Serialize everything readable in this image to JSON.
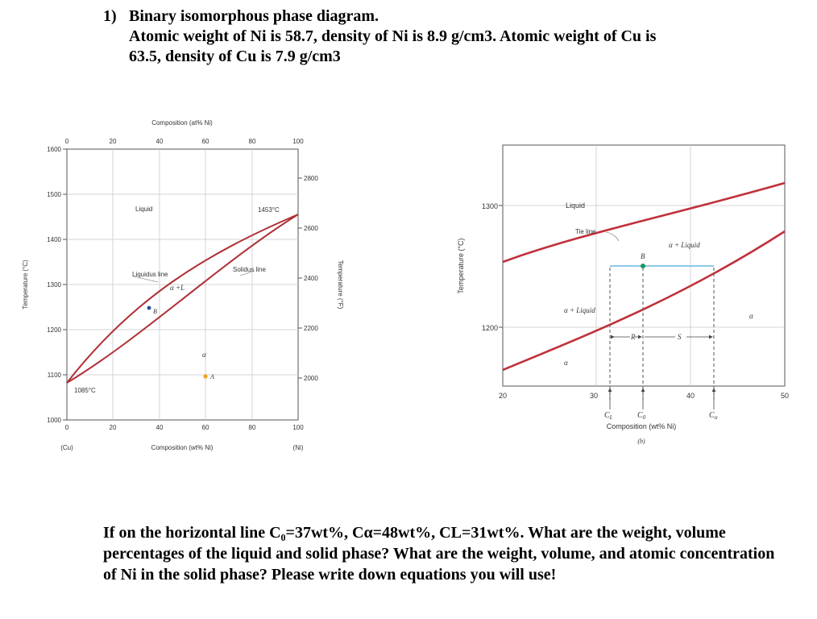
{
  "problem": {
    "number": "1)",
    "title": "Binary isomorphous phase diagram.",
    "line2": "Atomic weight of Ni is 58.7, density of Ni is 8.9 g/cm3. Atomic weight of Cu is",
    "line3": "63.5, density of Cu is 7.9 g/cm3"
  },
  "diagram_a": {
    "top_axis_label": "Composition (at% Ni)",
    "top_ticks": [
      "0",
      "20",
      "40",
      "60",
      "80",
      "100"
    ],
    "bottom_axis_label": "Composition (wt% Ni)",
    "bottom_ticks": [
      "0",
      "20",
      "40",
      "60",
      "80",
      "100"
    ],
    "bottom_end_left": "(Cu)",
    "bottom_end_right": "(Ni)",
    "left_axis_label": "Temperature (°C)",
    "left_ticks": [
      "1000",
      "1100",
      "1200",
      "1300",
      "1400",
      "1500",
      "1600"
    ],
    "right_axis_label": "Temperature (°F)",
    "right_ticks": [
      "2000",
      "2200",
      "2400",
      "2600",
      "2800"
    ],
    "label_liquid": "Liquid",
    "label_liquidus": "Liquidus line",
    "label_solidus": "Solidus line",
    "label_two_phase": "α +L",
    "label_alpha": "α",
    "label_point_b": "B",
    "label_point_a": "A",
    "label_cu_melt": "1085°C",
    "label_ni_melt": "1453°C",
    "line_color": "#b03035",
    "point_b_color": "#1f4e9c",
    "point_a_color": "#f0a020"
  },
  "diagram_b": {
    "x_ticks": [
      "20",
      "30",
      "40",
      "50"
    ],
    "y_ticks": [
      "1200",
      "1300"
    ],
    "y_axis_label": "Temperature (°C)",
    "x_axis_label": "Composition (wt% Ni)",
    "label_liquid": "Liquid",
    "label_tie_line": "Tie line",
    "label_alpha_liquid_top": "α + Liquid",
    "label_alpha_liquid_left": "α + Liquid",
    "label_alpha_bottom": "α",
    "label_alpha_right": "α",
    "label_b": "B",
    "label_r": "R",
    "label_s": "S",
    "label_cl": "C",
    "label_cl_sub": "L",
    "label_c0": "C",
    "label_c0_sub": "0",
    "label_ca": "C",
    "label_ca_sub": "α",
    "caption": "(b)",
    "line_color": "#c0303a",
    "tie_line_color": "#8ec8e8",
    "point_b_color": "#1a9a5a"
  },
  "question": {
    "text": "If on the horizontal line C₀=37wt%, Cα=48wt%, CL=31wt%. What are the weight, volume percentages of the liquid and solid phase? What are the weight, volume, and atomic concentration of Ni in the solid phase? Please write down equations you will use!"
  }
}
